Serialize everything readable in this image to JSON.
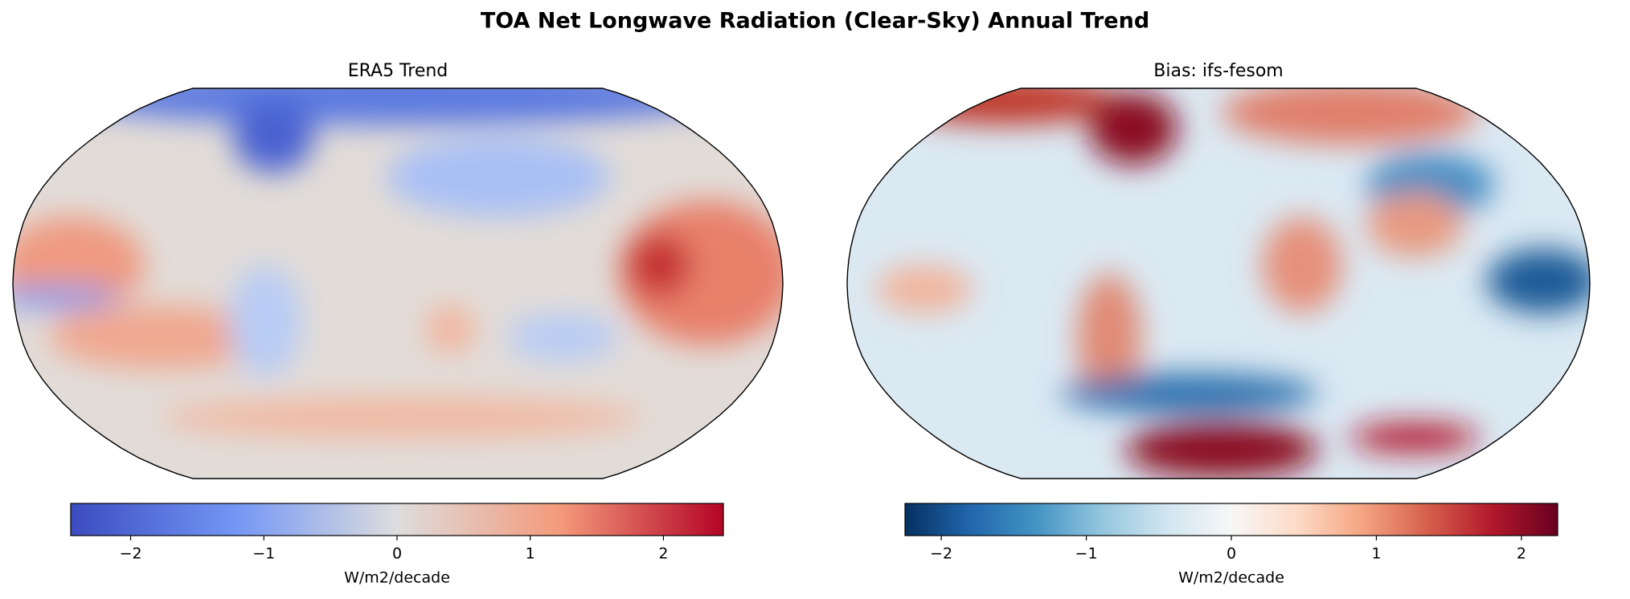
{
  "title": "TOA Net Longwave Radiation (Clear-Sky) Annual Trend",
  "panels": [
    {
      "title": "ERA5 Trend",
      "colorbar": {
        "label": "W/m2/decade",
        "lim": [
          -2.45,
          2.45
        ],
        "ticks": [
          {
            "value": -2,
            "label": "−2"
          },
          {
            "value": -1,
            "label": "−1"
          },
          0,
          1,
          2
        ],
        "colors": [
          "#3b4cc0",
          "#7396f5",
          "#dddddd",
          "#f49a7b",
          "#b40426"
        ]
      }
    },
    {
      "title": "Bias: ifs-fesom",
      "colorbar": {
        "label": "W/m2/decade",
        "lim": [
          -2.25,
          2.25
        ],
        "ticks": [
          {
            "value": -2,
            "label": "−2"
          },
          {
            "value": -1,
            "label": "−1"
          },
          0,
          1,
          2
        ],
        "colors": [
          "#053061",
          "#2166ac",
          "#4393c3",
          "#92c5de",
          "#d1e5f0",
          "#f7f7f7",
          "#fddbc7",
          "#f4a582",
          "#d6604d",
          "#b2182b",
          "#67001f"
        ]
      }
    }
  ]
}
